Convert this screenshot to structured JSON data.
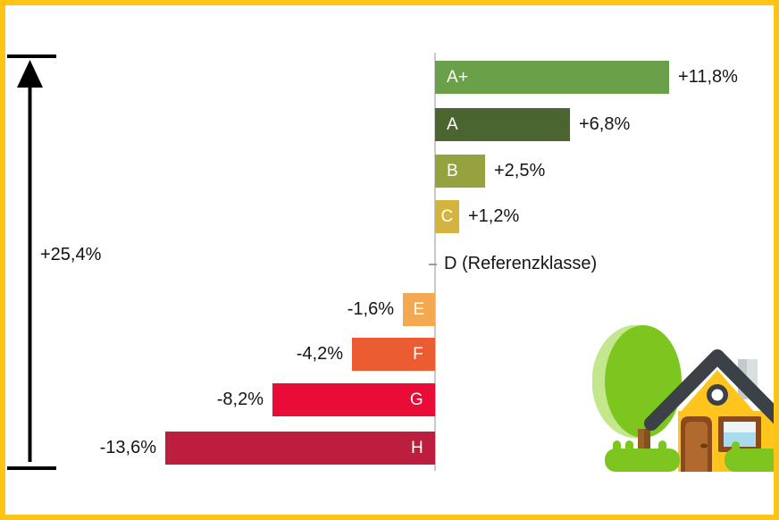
{
  "chart_data": {
    "type": "bar",
    "orientation": "horizontal",
    "title": "",
    "categories": [
      "A+",
      "A",
      "B",
      "C",
      "D",
      "E",
      "F",
      "G",
      "H"
    ],
    "values": [
      11.8,
      6.8,
      2.5,
      1.2,
      0,
      -1.6,
      -4.2,
      -8.2,
      -13.6
    ],
    "value_labels": [
      "+11,8%",
      "+6,8%",
      "+2,5%",
      "+1,2%",
      "D (Referenzklasse)",
      "-1,6%",
      "-4,2%",
      "-8,2%",
      "-13,6%"
    ],
    "bar_colors": [
      "#6ba04a",
      "#4a6530",
      "#96a23e",
      "#d4b43e",
      null,
      "#f4a950",
      "#ec5c33",
      "#e90c36",
      "#bc1e3e"
    ],
    "reference_category": "D",
    "reference_label": "D (Referenzklasse)",
    "range_annotation": "+25,4%",
    "xlim": [
      -13.6,
      11.8
    ],
    "grid": false,
    "legend": "none"
  },
  "bars": [
    {
      "label": "A+",
      "value": 11.8,
      "value_label": "+11,8%",
      "color": "#6ba04a"
    },
    {
      "label": "A",
      "value": 6.8,
      "value_label": "+6,8%",
      "color": "#4a6530"
    },
    {
      "label": "B",
      "value": 2.5,
      "value_label": "+2,5%",
      "color": "#96a23e"
    },
    {
      "label": "C",
      "value": 1.2,
      "value_label": "+1,2%",
      "color": "#d4b43e"
    },
    {
      "label": "E",
      "value": -1.6,
      "value_label": "-1,6%",
      "color": "#f4a950"
    },
    {
      "label": "F",
      "value": -4.2,
      "value_label": "-4,2%",
      "color": "#ec5c33"
    },
    {
      "label": "G",
      "value": -8.2,
      "value_label": "-8,2%",
      "color": "#e90c36"
    },
    {
      "label": "H",
      "value": -13.6,
      "value_label": "-13,6%",
      "color": "#bc1e3e"
    }
  ],
  "annotations": {
    "range_label": "+25,4%",
    "reference_label": "D (Referenzklasse)"
  },
  "illustration": {
    "name": "house-with-tree"
  },
  "colors": {
    "frame_border": "#fec415",
    "axis": "#c9c9c9",
    "text": "#151515",
    "arrow": "#000000"
  }
}
